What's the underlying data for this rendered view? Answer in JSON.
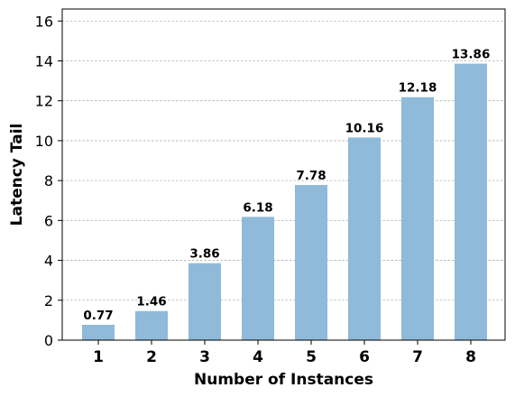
{
  "chart_data": {
    "type": "bar",
    "title": "",
    "xlabel": "Number of Instances",
    "ylabel": "Latency Tail",
    "categories": [
      "1",
      "2",
      "3",
      "4",
      "5",
      "6",
      "7",
      "8"
    ],
    "values": [
      0.77,
      1.46,
      3.86,
      6.18,
      7.78,
      10.16,
      12.18,
      13.86
    ],
    "data_labels": [
      "0.77",
      "1.46",
      "3.86",
      "6.18",
      "7.78",
      "10.16",
      "12.18",
      "13.86"
    ],
    "yticks": [
      0,
      2,
      4,
      6,
      8,
      10,
      12,
      14,
      16
    ],
    "ylim": [
      0,
      16.6
    ],
    "grid": "y-dashed",
    "legend": "none",
    "colors": {
      "bar": "#8fbad9",
      "grid": "#b0b0b0",
      "axis": "#000000"
    }
  }
}
